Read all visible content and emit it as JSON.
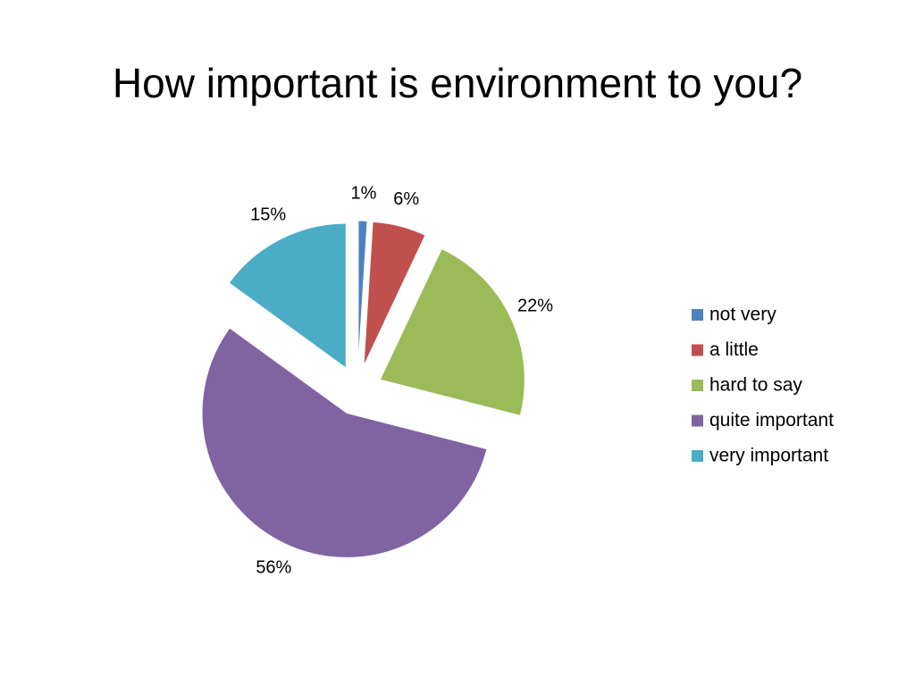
{
  "chart_data": {
    "type": "pie",
    "title": "How important is environment to you?",
    "categories": [
      "not very",
      "a little",
      "hard to say",
      "quite important",
      "very important"
    ],
    "values": [
      1,
      6,
      22,
      56,
      15
    ],
    "value_labels": [
      "1%",
      "6%",
      "22%",
      "56%",
      "15%"
    ],
    "colors": [
      "#4f81bd",
      "#c0504d",
      "#9bbb59",
      "#8064a2",
      "#4bacc6"
    ],
    "legend": "right"
  }
}
